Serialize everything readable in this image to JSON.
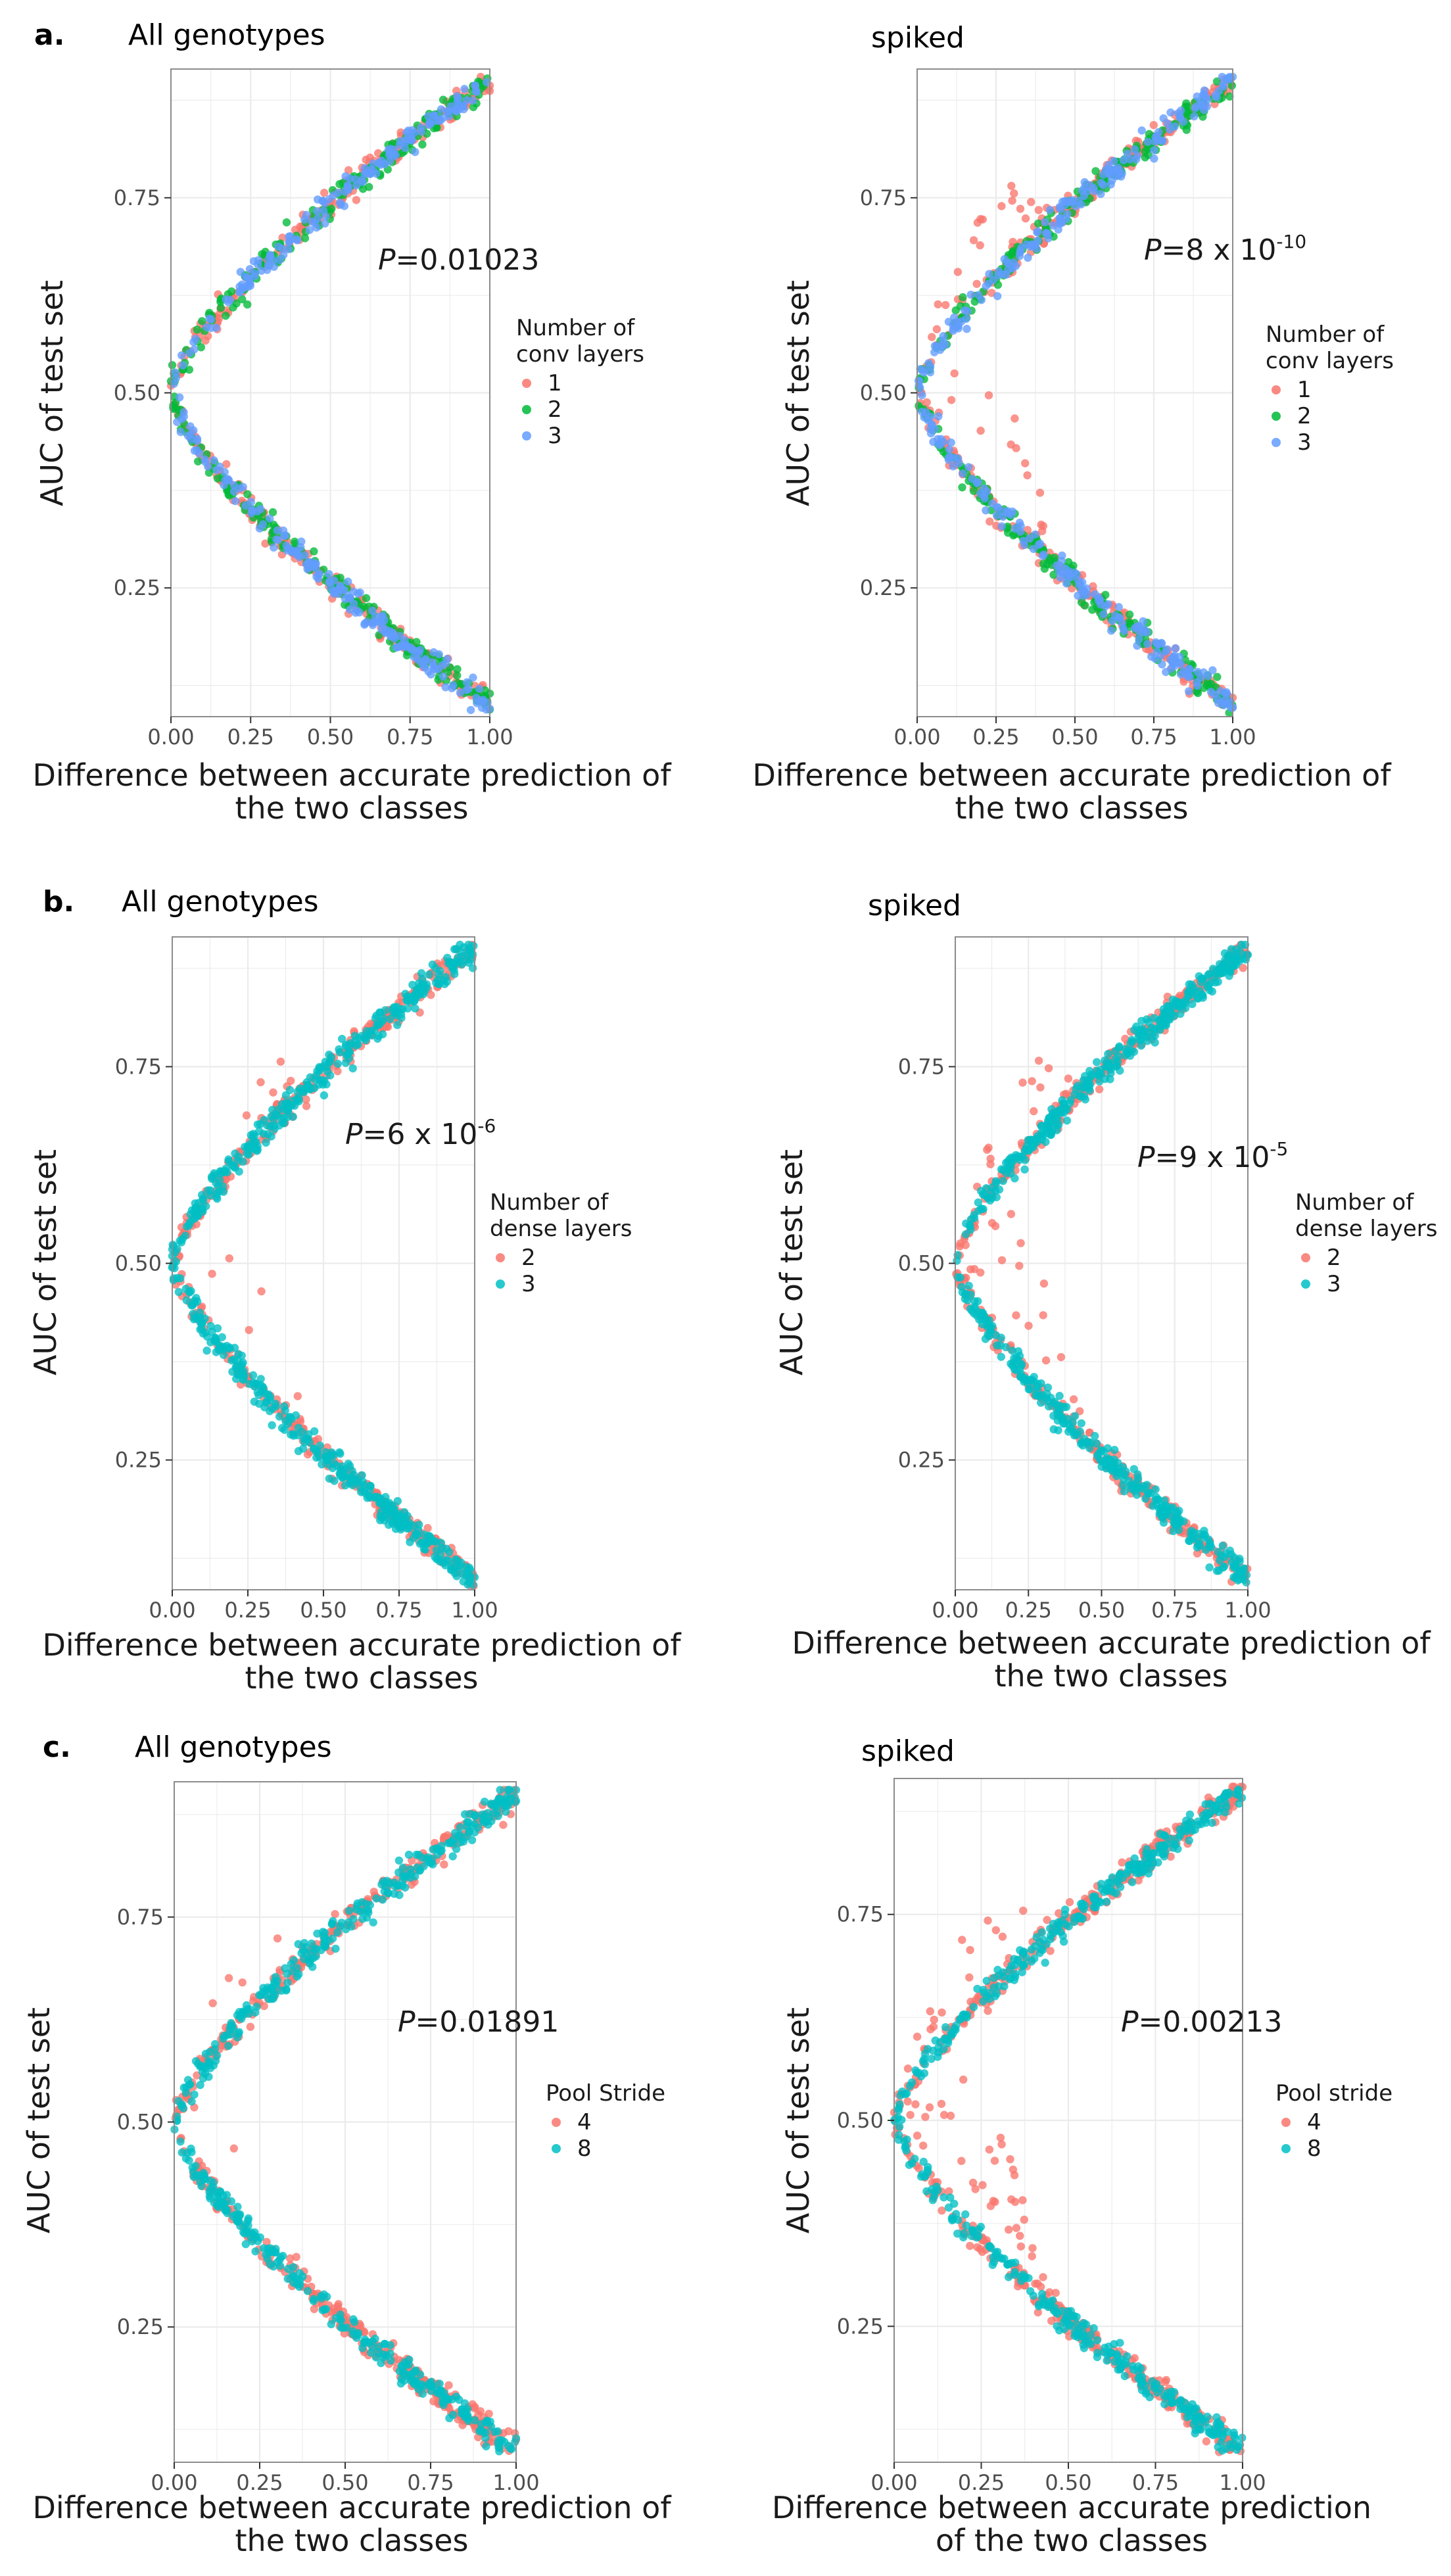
{
  "chart_data": [
    {
      "type": "scatter",
      "panel_letter": "a.",
      "title": "All genotypes",
      "xlabel": [
        "Difference between accurate prediction of",
        "the two classes"
      ],
      "ylabel": "AUC of test set",
      "xlim": [
        0,
        1
      ],
      "ylim": [
        0.085,
        0.915
      ],
      "xticks": [
        "0.00",
        "0.25",
        "0.50",
        "0.75",
        "1.00"
      ],
      "yticks": [
        "0.25",
        "0.50",
        "0.75"
      ],
      "pvalue": {
        "italic": "P",
        "text": "=0.01023",
        "sup": ""
      },
      "legend": {
        "title": [
          "Number of",
          "conv layers"
        ],
        "placement": "right"
      },
      "series": [
        {
          "name": "1",
          "color": "#F8766D",
          "points": 350
        },
        {
          "name": "2",
          "color": "#00BA38",
          "points": 350
        },
        {
          "name": "3",
          "color": "#619CFF",
          "points": 350
        }
      ],
      "spike": 0
    },
    {
      "type": "scatter",
      "panel_letter": "",
      "title": "spiked",
      "xlabel": [
        "Difference between accurate prediction of",
        "the two classes"
      ],
      "ylabel": "AUC of test set",
      "xlim": [
        0,
        1
      ],
      "ylim": [
        0.085,
        0.915
      ],
      "xticks": [
        "0.00",
        "0.25",
        "0.50",
        "0.75",
        "1.00"
      ],
      "yticks": [
        "0.25",
        "0.50",
        "0.75"
      ],
      "pvalue": {
        "italic": "P",
        "text": "=8 x 10",
        "sup": "-10"
      },
      "legend": {
        "title": [
          "Number of",
          "conv layers"
        ],
        "placement": "right"
      },
      "series": [
        {
          "name": "1",
          "color": "#F8766D",
          "points": 350
        },
        {
          "name": "2",
          "color": "#00BA38",
          "points": 350
        },
        {
          "name": "3",
          "color": "#619CFF",
          "points": 350
        }
      ],
      "spike": 0.9
    },
    {
      "type": "scatter",
      "panel_letter": "b.",
      "title": "All genotypes",
      "xlabel": [
        "Difference between accurate prediction of",
        "the two classes"
      ],
      "ylabel": "AUC of test set",
      "xlim": [
        0,
        1
      ],
      "ylim": [
        0.085,
        0.915
      ],
      "xticks": [
        "0.00",
        "0.25",
        "0.50",
        "0.75",
        "1.00"
      ],
      "yticks": [
        "0.25",
        "0.50",
        "0.75"
      ],
      "pvalue": {
        "italic": "P",
        "text": "=6 x 10",
        "sup": "-6"
      },
      "legend": {
        "title": [
          "Number of",
          "dense layers"
        ],
        "placement": "right"
      },
      "series": [
        {
          "name": "2",
          "color": "#F8766D",
          "points": 420
        },
        {
          "name": "3",
          "color": "#00BFC4",
          "points": 620
        }
      ],
      "spike": 0.2
    },
    {
      "type": "scatter",
      "panel_letter": "",
      "title": "spiked",
      "xlabel": [
        "Difference between accurate prediction of",
        "the two classes"
      ],
      "ylabel": "AUC of test set",
      "xlim": [
        0,
        1
      ],
      "ylim": [
        0.085,
        0.915
      ],
      "xticks": [
        "0.00",
        "0.25",
        "0.50",
        "0.75",
        "1.00"
      ],
      "yticks": [
        "0.25",
        "0.50",
        "0.75"
      ],
      "pvalue": {
        "italic": "P",
        "text": "=9 x 10",
        "sup": "-5"
      },
      "legend": {
        "title": [
          "Number of",
          "dense layers"
        ],
        "placement": "right"
      },
      "series": [
        {
          "name": "2",
          "color": "#F8766D",
          "points": 420
        },
        {
          "name": "3",
          "color": "#00BFC4",
          "points": 620
        }
      ],
      "spike": 0.7
    },
    {
      "type": "scatter",
      "panel_letter": "c.",
      "title": "All genotypes",
      "xlabel": [
        "Difference between accurate prediction of",
        "the two classes"
      ],
      "ylabel": "AUC of test set",
      "xlim": [
        0,
        1
      ],
      "ylim": [
        0.085,
        0.915
      ],
      "xticks": [
        "0.00",
        "0.25",
        "0.50",
        "0.75",
        "1.00"
      ],
      "yticks": [
        "0.25",
        "0.50",
        "0.75"
      ],
      "pvalue": {
        "italic": "P",
        "text": "=0.01891",
        "sup": ""
      },
      "legend": {
        "title": [
          "Pool Stride"
        ],
        "placement": "right"
      },
      "series": [
        {
          "name": "4",
          "color": "#F8766D",
          "points": 520
        },
        {
          "name": "8",
          "color": "#00BFC4",
          "points": 520
        }
      ],
      "spike": 0.15
    },
    {
      "type": "scatter",
      "panel_letter": "",
      "title": "spiked",
      "xlabel": [
        "Difference between accurate prediction",
        "of the two classes"
      ],
      "ylabel": "AUC of test set",
      "xlim": [
        0,
        1
      ],
      "ylim": [
        0.085,
        0.915
      ],
      "xticks": [
        "0.00",
        "0.25",
        "0.50",
        "0.75",
        "1.00"
      ],
      "yticks": [
        "0.25",
        "0.50",
        "0.75"
      ],
      "pvalue": {
        "italic": "P",
        "text": "=0.00213",
        "sup": ""
      },
      "legend": {
        "title": [
          "Pool stride"
        ],
        "placement": "right"
      },
      "series": [
        {
          "name": "4",
          "color": "#F8766D",
          "points": 520
        },
        {
          "name": "8",
          "color": "#00BFC4",
          "points": 520
        }
      ],
      "spike": 0.9
    }
  ]
}
